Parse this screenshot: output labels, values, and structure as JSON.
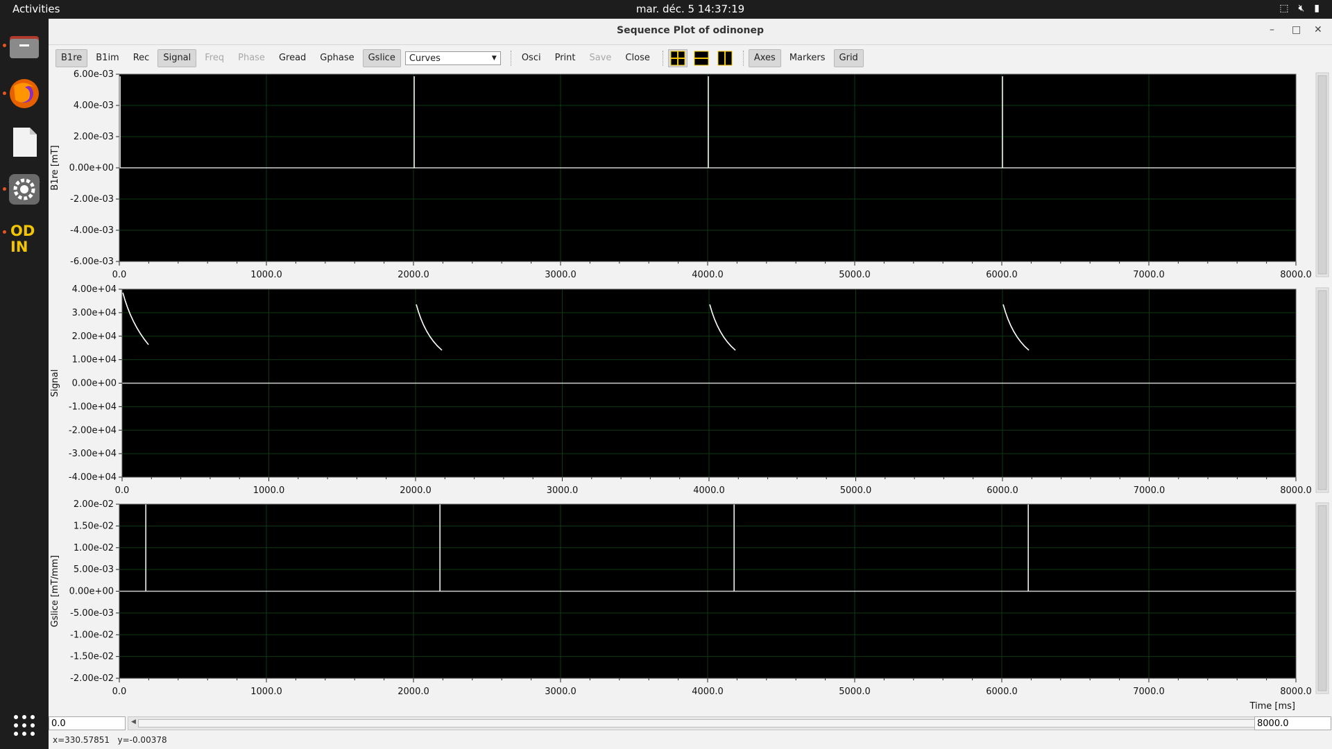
{
  "topbar": {
    "activities": "Activities",
    "clock": "mar. déc. 5  14:37:19"
  },
  "window": {
    "title": "Sequence Plot of odinonep"
  },
  "toolbar": {
    "buttons": [
      {
        "label": "B1re",
        "state": "on"
      },
      {
        "label": "B1im",
        "state": "off"
      },
      {
        "label": "Rec",
        "state": "off"
      },
      {
        "label": "Signal",
        "state": "on"
      },
      {
        "label": "Freq",
        "state": "disabled"
      },
      {
        "label": "Phase",
        "state": "disabled"
      },
      {
        "label": "Gread",
        "state": "off"
      },
      {
        "label": "Gphase",
        "state": "off"
      },
      {
        "label": "Gslice",
        "state": "on"
      }
    ],
    "mode_select": "Curves",
    "actions": [
      {
        "label": "Osci",
        "state": "off"
      },
      {
        "label": "Print",
        "state": "off"
      },
      {
        "label": "Save",
        "state": "disabled"
      },
      {
        "label": "Close",
        "state": "off"
      }
    ],
    "view_toggles": [
      {
        "label": "Axes",
        "state": "on"
      },
      {
        "label": "Markers",
        "state": "off"
      },
      {
        "label": "Grid",
        "state": "on"
      }
    ]
  },
  "x_ticks": [
    "0.0",
    "1000.0",
    "2000.0",
    "3000.0",
    "4000.0",
    "5000.0",
    "6000.0",
    "7000.0",
    "8000.0"
  ],
  "x_axis_label": "Time [ms]",
  "plots": [
    {
      "ylabel": "B1re [mT]",
      "yticks": [
        "6.00e-03",
        "4.00e-03",
        "2.00e-03",
        "0.00e+00",
        "-2.00e-03",
        "-4.00e-03",
        "-6.00e-03"
      ]
    },
    {
      "ylabel": "Signal",
      "yticks": [
        "4.00e+04",
        "3.00e+04",
        "2.00e+04",
        "1.00e+04",
        "0.00e+00",
        "-1.00e+04",
        "-2.00e+04",
        "-3.00e+04",
        "-4.00e+04"
      ]
    },
    {
      "ylabel": "Gslice [mT/mm]",
      "yticks": [
        "2.00e-02",
        "1.50e-02",
        "1.00e-02",
        "5.00e-03",
        "0.00e+00",
        "-5.00e-03",
        "-1.00e-02",
        "-1.50e-02",
        "-2.00e-02"
      ]
    }
  ],
  "range": {
    "start": "0.0",
    "end": "8000.0"
  },
  "status": {
    "coords": "x=330.57851   y=-0.00378"
  },
  "colors": {
    "plot_bg": "#000000",
    "trace": "#ffffff",
    "grid": "#0c3a12"
  }
}
